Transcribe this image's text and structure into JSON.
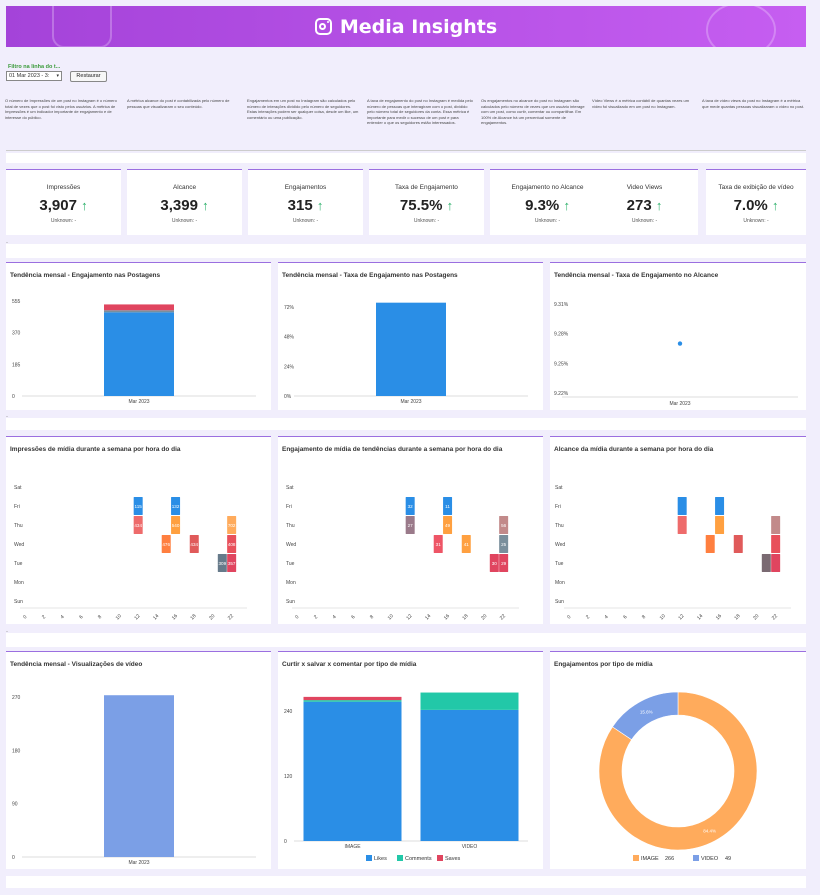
{
  "header": {
    "title": "Media Insights"
  },
  "filter": {
    "label": "Filtro na linha do t...",
    "selected": "01 Mar 2023 - 3:",
    "reset_label": "Restaurar"
  },
  "descriptions": [
    "O número de Impressões de um post no Instagram é o número total de vezes que o post foi visto pelos usuários. A métrica de Impressões é um indicador importante de engajamento e de interesse do público.",
    "A métrica alcance do post é contabilizada pelo número de pessoas que visualizaram o seu conteúdo.",
    "Engajamentos em um post no Instagram são calculados pelo número de interações dividido pelo número de seguidores. Estas interações podem ser qualquer coisa, desde um like, um comentário ou uma publicação.",
    "A taxa de engajamento do post no Instagram é medida pelo número de pessoas que interagiram com o post, dividido pelo número total de seguidores da conta. Essa métrica é importante para medir o sucesso de um post e para entender o que os seguidores estão interessados.",
    "Os engajamentos no alcance do post no Instagram são calculados pelo número de vezes que um usuário interage com um post, como curtir, comentar ou compartilhar. Em 100% de Alcance há um percentual somente de engajamentos.",
    "Vídeo Views é a métrica contábil de quantas vezes um vídeo foi visualizado em um post no Instagram.",
    "A taxa de vídeo views do post no Instagram é a métrica que mede quantas pessoas visualizaram o vídeo no post."
  ],
  "kpis": [
    {
      "label": "Impressões",
      "value": "3,907",
      "arrow": "↑",
      "sub": "Unknown: -"
    },
    {
      "label": "Alcance",
      "value": "3,399",
      "arrow": "↑",
      "sub": "Unknown: -"
    },
    {
      "label": "Engajamentos",
      "value": "315",
      "arrow": "↑",
      "sub": "Unknown: -"
    },
    {
      "label": "Taxa de Engajamento",
      "value": "75.5%",
      "arrow": "↑",
      "sub": "Unknown: -"
    },
    {
      "label": "Engajamento no Alcance",
      "value": "9.3%",
      "arrow": "↑",
      "sub": "Unknown: -"
    },
    {
      "label": "Video Views",
      "value": "273",
      "arrow": "↑",
      "sub": "Unknown: -"
    },
    {
      "label": "Taxa de exibição de vídeo",
      "value": "7.0%",
      "arrow": "↑",
      "sub": "Unknown: -"
    }
  ],
  "dash": "-",
  "colors": {
    "accent": "#9b6fe0",
    "up": "#2bb06a",
    "likes": "#2a8ee6",
    "comments": "#22c8a8",
    "saves": "#e0455f",
    "image": "#ffab5c",
    "video": "#7b9fe6"
  },
  "chart_data": [
    {
      "type": "bar",
      "title": "Tendência mensal - Engajamento nas Postagens",
      "categories": [
        "Mar 2023"
      ],
      "series": [
        {
          "values": [
            489
          ],
          "color": "#2a8ee6"
        },
        {
          "values": [
            12
          ],
          "color": "#7a8f9c"
        },
        {
          "values": [
            34
          ],
          "color": "#e0455f"
        }
      ],
      "yticks": [
        "0",
        "185",
        "370",
        "555"
      ],
      "ylim": [
        0,
        555
      ],
      "ytick_values": [
        0,
        185,
        370,
        555
      ]
    },
    {
      "type": "bar",
      "title": "Tendência mensal - Taxa de Engajamento nas Postagens",
      "categories": [
        "Mar 2023"
      ],
      "series": [
        {
          "values": [
            75.5
          ],
          "color": "#2a8ee6"
        }
      ],
      "yticks": [
        "0%",
        "24%",
        "48%",
        "72%"
      ],
      "ylim": [
        0,
        72
      ],
      "ytick_values": [
        0,
        24,
        48,
        72
      ]
    },
    {
      "type": "scatter",
      "title": "Tendência mensal - Taxa de Engajamento no Alcance",
      "categories": [
        "Mar 2023"
      ],
      "values": [
        9.27
      ],
      "yticks": [
        "9.22%",
        "9.25%",
        "9.28%",
        "9.31%"
      ],
      "ylim": [
        9.22,
        9.31
      ],
      "ytick_values": [
        9.22,
        9.25,
        9.28,
        9.31
      ]
    },
    {
      "type": "heatmap",
      "title": "Impressões de mídia durante a semana por hora do dia",
      "days": [
        "Sat",
        "Fri",
        "Thu",
        "Wed",
        "Tue",
        "Mon",
        "Sun"
      ],
      "hours": [
        "0",
        "2",
        "4",
        "6",
        "8",
        "10",
        "12",
        "14",
        "16",
        "18",
        "20",
        "22"
      ],
      "cells": [
        {
          "day": "Fri",
          "hour": 12,
          "label": "115",
          "color": "#2a8ee6"
        },
        {
          "day": "Fri",
          "hour": 16,
          "label": "132",
          "color": "#2a8ee6"
        },
        {
          "day": "Thu",
          "hour": 12,
          "label": "434",
          "color": "#ee6b6b"
        },
        {
          "day": "Thu",
          "hour": 16,
          "label": "540",
          "color": "#ffa040"
        },
        {
          "day": "Thu",
          "hour": 22,
          "label": "702",
          "color": "#ffab5c"
        },
        {
          "day": "Wed",
          "hour": 15,
          "label": "476",
          "color": "#ff7f3f"
        },
        {
          "day": "Wed",
          "hour": 18,
          "label": "434",
          "color": "#e05a5a"
        },
        {
          "day": "Wed",
          "hour": 22,
          "label": "408",
          "color": "#e8505b"
        },
        {
          "day": "Tue",
          "hour": 21,
          "label": "309",
          "color": "#667a8a"
        },
        {
          "day": "Tue",
          "hour": 22,
          "label": "357",
          "color": "#e0455f"
        }
      ]
    },
    {
      "type": "heatmap",
      "title": "Engajamento de mídia de tendências durante a semana por hora do dia",
      "days": [
        "Sat",
        "Fri",
        "Thu",
        "Wed",
        "Tue",
        "Mon",
        "Sun"
      ],
      "hours": [
        "0",
        "2",
        "4",
        "6",
        "8",
        "10",
        "12",
        "14",
        "16",
        "18",
        "20",
        "22"
      ],
      "cells": [
        {
          "day": "Fri",
          "hour": 12,
          "label": "32",
          "color": "#2a8ee6"
        },
        {
          "day": "Fri",
          "hour": 16,
          "label": "11",
          "color": "#2a8ee6"
        },
        {
          "day": "Thu",
          "hour": 12,
          "label": "27",
          "color": "#9a7a8a"
        },
        {
          "day": "Thu",
          "hour": 16,
          "label": "49",
          "color": "#ffa040"
        },
        {
          "day": "Thu",
          "hour": 22,
          "label": "56",
          "color": "#c28a8a"
        },
        {
          "day": "Wed",
          "hour": 15,
          "label": "31",
          "color": "#ee5566"
        },
        {
          "day": "Wed",
          "hour": 18,
          "label": "41",
          "color": "#ffa040"
        },
        {
          "day": "Wed",
          "hour": 22,
          "label": "25",
          "color": "#7a8f9c"
        },
        {
          "day": "Tue",
          "hour": 21,
          "label": "30",
          "color": "#e0455f"
        },
        {
          "day": "Tue",
          "hour": 22,
          "label": "29",
          "color": "#e0455f"
        }
      ]
    },
    {
      "type": "heatmap",
      "title": "Alcance da mídia durante a semana por hora do dia",
      "days": [
        "Sat",
        "Fri",
        "Thu",
        "Wed",
        "Tue",
        "Mon",
        "Sun"
      ],
      "hours": [
        "0",
        "2",
        "4",
        "6",
        "8",
        "10",
        "12",
        "14",
        "16",
        "18",
        "20",
        "22"
      ],
      "cells": [
        {
          "day": "Fri",
          "hour": 12,
          "label": "",
          "color": "#2a8ee6"
        },
        {
          "day": "Fri",
          "hour": 16,
          "label": "",
          "color": "#2a8ee6"
        },
        {
          "day": "Thu",
          "hour": 12,
          "label": "",
          "color": "#ee6b6b"
        },
        {
          "day": "Thu",
          "hour": 16,
          "label": "",
          "color": "#ffa040"
        },
        {
          "day": "Thu",
          "hour": 22,
          "label": "",
          "color": "#c28a8a"
        },
        {
          "day": "Wed",
          "hour": 15,
          "label": "",
          "color": "#ff7f3f"
        },
        {
          "day": "Wed",
          "hour": 18,
          "label": "",
          "color": "#e05a5a"
        },
        {
          "day": "Wed",
          "hour": 22,
          "label": "",
          "color": "#e8505b"
        },
        {
          "day": "Tue",
          "hour": 21,
          "label": "",
          "color": "#7a6a72"
        },
        {
          "day": "Tue",
          "hour": 22,
          "label": "",
          "color": "#e0455f"
        }
      ]
    },
    {
      "type": "bar",
      "title": "Tendência mensal - Visualizações de vídeo",
      "categories": [
        "Mar 2023"
      ],
      "series": [
        {
          "values": [
            273
          ],
          "color": "#7b9fe6"
        }
      ],
      "yticks": [
        "0",
        "90",
        "180",
        "270"
      ],
      "ylim": [
        0,
        270
      ],
      "ytick_values": [
        0,
        90,
        180,
        270
      ]
    },
    {
      "type": "bar",
      "title": "Curtir x salvar x comentar por tipo de mídia",
      "categories": [
        "IMAGE",
        "VIDEO"
      ],
      "series": [
        {
          "name": "Likes",
          "values": [
            257,
            242
          ],
          "color": "#2a8ee6"
        },
        {
          "name": "Comments",
          "values": [
            3,
            32
          ],
          "color": "#22c8a8"
        },
        {
          "name": "Saves",
          "values": [
            6,
            0
          ],
          "color": "#e0455f"
        }
      ],
      "yticks": [
        "0",
        "120",
        "240"
      ],
      "ylim": [
        0,
        275
      ],
      "ytick_values": [
        0,
        120,
        240
      ]
    },
    {
      "type": "pie",
      "title": "Engajamentos por tipo de mídia",
      "slices": [
        {
          "name": "IMAGE",
          "value": 266,
          "pct": "84.4%",
          "color": "#ffab5c"
        },
        {
          "name": "VIDEO",
          "value": 49,
          "pct": "15.6%",
          "color": "#7b9fe6"
        }
      ]
    }
  ]
}
